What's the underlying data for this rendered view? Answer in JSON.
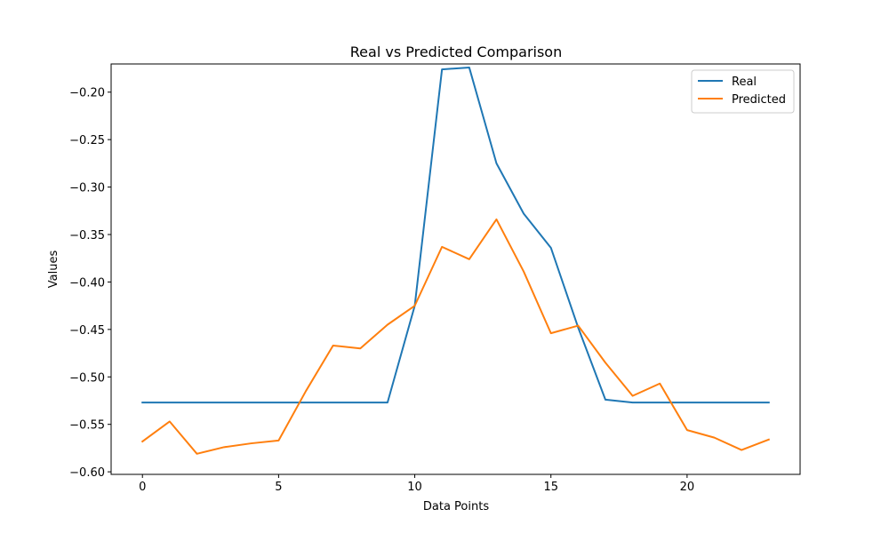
{
  "chart_data": {
    "type": "line",
    "title": "Real vs Predicted Comparison",
    "xlabel": "Data Points",
    "ylabel": "Values",
    "xlim": [
      -1.15,
      24.15
    ],
    "ylim": [
      -0.6027,
      -0.1703
    ],
    "xticks": [
      0,
      5,
      10,
      15,
      20
    ],
    "yticks": [
      -0.6,
      -0.55,
      -0.5,
      -0.45,
      -0.4,
      -0.35,
      -0.3,
      -0.25,
      -0.2
    ],
    "ytick_labels": [
      "−0.60",
      "−0.55",
      "−0.50",
      "−0.45",
      "−0.40",
      "−0.35",
      "−0.30",
      "−0.25",
      "−0.20"
    ],
    "grid": false,
    "legend_position": "top-right",
    "x": [
      0,
      1,
      2,
      3,
      4,
      5,
      6,
      7,
      8,
      9,
      10,
      11,
      12,
      13,
      14,
      15,
      16,
      17,
      18,
      19,
      20,
      21,
      22,
      23
    ],
    "series": [
      {
        "name": "Real",
        "color": "#1f77b4",
        "values": [
          -0.527,
          -0.527,
          -0.527,
          -0.527,
          -0.527,
          -0.527,
          -0.527,
          -0.527,
          -0.527,
          -0.527,
          -0.425,
          -0.176,
          -0.174,
          -0.275,
          -0.328,
          -0.364,
          -0.448,
          -0.524,
          -0.527,
          -0.527,
          -0.527,
          -0.527,
          -0.527,
          -0.527
        ]
      },
      {
        "name": "Predicted",
        "color": "#ff7f0e",
        "values": [
          -0.568,
          -0.547,
          -0.581,
          -0.574,
          -0.57,
          -0.567,
          -0.515,
          -0.467,
          -0.47,
          -0.445,
          -0.425,
          -0.363,
          -0.376,
          -0.334,
          -0.389,
          -0.454,
          -0.446,
          -0.485,
          -0.52,
          -0.507,
          -0.556,
          -0.564,
          -0.577,
          -0.566
        ]
      }
    ]
  }
}
